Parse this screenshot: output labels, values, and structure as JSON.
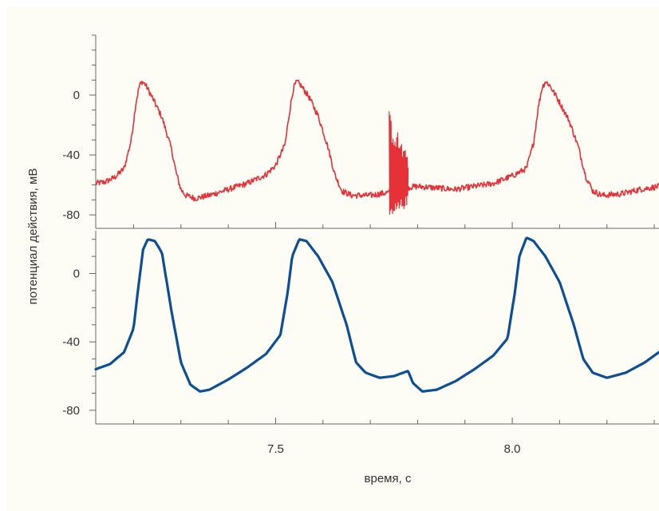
{
  "chart_data": {
    "type": "line",
    "xlabel": "время, с",
    "ylabel": "потенциал действия, мВ",
    "xlim": [
      7.12,
      8.31
    ],
    "x_ticks": [
      7.5,
      8.0
    ],
    "x_tick_labels": [
      "7.5",
      "8.0"
    ],
    "grid": false,
    "panels": [
      {
        "name": "top",
        "ylim": [
          -89,
          40
        ],
        "y_ticks": [
          0,
          -40,
          -80
        ],
        "y_tick_labels": [
          "0",
          "-40",
          "-80"
        ],
        "series": [
          {
            "color": "#e53138",
            "noisy": true,
            "points": [
              [
                7.12,
                -59
              ],
              [
                7.14,
                -58
              ],
              [
                7.16,
                -55
              ],
              [
                7.18,
                -49
              ],
              [
                7.195,
                -30
              ],
              [
                7.205,
                -5
              ],
              [
                7.212,
                6
              ],
              [
                7.218,
                9
              ],
              [
                7.225,
                7
              ],
              [
                7.24,
                -2
              ],
              [
                7.26,
                -15
              ],
              [
                7.28,
                -36
              ],
              [
                7.29,
                -52
              ],
              [
                7.3,
                -63
              ],
              [
                7.31,
                -67
              ],
              [
                7.33,
                -69
              ],
              [
                7.36,
                -67
              ],
              [
                7.4,
                -63
              ],
              [
                7.44,
                -59
              ],
              [
                7.48,
                -53
              ],
              [
                7.5,
                -47
              ],
              [
                7.52,
                -33
              ],
              [
                7.53,
                -10
              ],
              [
                7.538,
                5
              ],
              [
                7.545,
                9
              ],
              [
                7.552,
                7
              ],
              [
                7.57,
                -1
              ],
              [
                7.59,
                -14
              ],
              [
                7.61,
                -34
              ],
              [
                7.625,
                -53
              ],
              [
                7.64,
                -64
              ],
              [
                7.66,
                -67
              ],
              [
                7.7,
                -67
              ],
              [
                7.74,
                -65
              ],
              [
                7.77,
                -62
              ],
              [
                7.8,
                -61
              ],
              [
                7.84,
                -62
              ],
              [
                7.88,
                -63
              ],
              [
                7.92,
                -61
              ],
              [
                7.96,
                -59
              ],
              [
                8.0,
                -54
              ],
              [
                8.03,
                -49
              ],
              [
                8.045,
                -32
              ],
              [
                8.055,
                -8
              ],
              [
                8.063,
                5
              ],
              [
                8.07,
                9
              ],
              [
                8.078,
                7
              ],
              [
                8.095,
                -2
              ],
              [
                8.12,
                -17
              ],
              [
                8.14,
                -35
              ],
              [
                8.155,
                -54
              ],
              [
                8.17,
                -64
              ],
              [
                8.19,
                -67
              ],
              [
                8.23,
                -66
              ],
              [
                8.27,
                -63
              ],
              [
                8.31,
                -61
              ]
            ]
          }
        ],
        "artifact": {
          "x_range": [
            7.74,
            7.78
          ],
          "amplitude_range": [
            -89,
            -30
          ]
        }
      },
      {
        "name": "bottom",
        "ylim": [
          -88,
          25
        ],
        "y_ticks": [
          0,
          -40,
          -80
        ],
        "y_tick_labels": [
          "0",
          "-40",
          "-80"
        ],
        "series": [
          {
            "color": "#0d4f96",
            "noisy": false,
            "points": [
              [
                7.12,
                -56
              ],
              [
                7.15,
                -53
              ],
              [
                7.18,
                -46
              ],
              [
                7.2,
                -32
              ],
              [
                7.21,
                -8
              ],
              [
                7.22,
                14
              ],
              [
                7.23,
                20
              ],
              [
                7.245,
                19
              ],
              [
                7.26,
                12
              ],
              [
                7.28,
                -22
              ],
              [
                7.3,
                -52
              ],
              [
                7.32,
                -65
              ],
              [
                7.34,
                -69
              ],
              [
                7.36,
                -68
              ],
              [
                7.4,
                -62
              ],
              [
                7.44,
                -55
              ],
              [
                7.48,
                -47
              ],
              [
                7.51,
                -36
              ],
              [
                7.525,
                -12
              ],
              [
                7.535,
                10
              ],
              [
                7.55,
                20
              ],
              [
                7.565,
                19
              ],
              [
                7.59,
                10
              ],
              [
                7.62,
                -5
              ],
              [
                7.65,
                -30
              ],
              [
                7.67,
                -52
              ],
              [
                7.69,
                -58
              ],
              [
                7.72,
                -61
              ],
              [
                7.75,
                -60
              ],
              [
                7.78,
                -57
              ],
              [
                7.79,
                -64
              ],
              [
                7.81,
                -69
              ],
              [
                7.84,
                -68
              ],
              [
                7.88,
                -63
              ],
              [
                7.92,
                -56
              ],
              [
                7.96,
                -48
              ],
              [
                7.99,
                -38
              ],
              [
                8.005,
                -12
              ],
              [
                8.015,
                10
              ],
              [
                8.03,
                21
              ],
              [
                8.045,
                19
              ],
              [
                8.07,
                10
              ],
              [
                8.1,
                -5
              ],
              [
                8.13,
                -30
              ],
              [
                8.15,
                -50
              ],
              [
                8.17,
                -58
              ],
              [
                8.2,
                -61
              ],
              [
                8.24,
                -58
              ],
              [
                8.28,
                -52
              ],
              [
                8.31,
                -46
              ]
            ]
          }
        ]
      }
    ]
  }
}
